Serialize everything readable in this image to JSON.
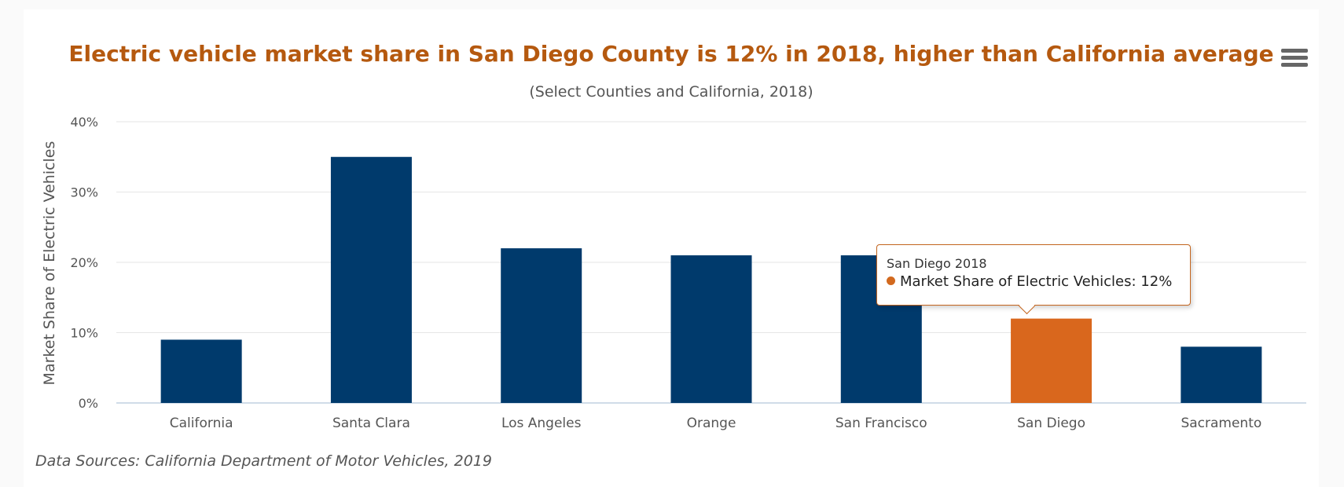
{
  "colors": {
    "bar": "#003a6c",
    "highlight": "#d9671d",
    "title": "#b5590f",
    "grid": "#e6e6e6",
    "axis_line": "#c0d0e0",
    "text": "#555555"
  },
  "menu": {
    "icon": "hamburger-menu-icon"
  },
  "chart_data": {
    "type": "bar",
    "title": "Electric vehicle market share in San Diego County is 12% in 2018, higher than California average",
    "subtitle": "(Select Counties and California, 2018)",
    "xlabel": "",
    "ylabel": "Market Share of Electric Vehicles",
    "categories": [
      "California",
      "Santa Clara",
      "Los Angeles",
      "Orange",
      "San Francisco",
      "San Diego",
      "Sacramento"
    ],
    "values": [
      9,
      35,
      22,
      21,
      21,
      12,
      8
    ],
    "highlighted_category": "San Diego",
    "ylim": [
      0,
      40
    ],
    "yticks": [
      "0%",
      "10%",
      "20%",
      "30%",
      "40%"
    ],
    "grid": true,
    "legend": "none"
  },
  "tooltip": {
    "header": "San Diego 2018",
    "series_label": "Market Share of Electric Vehicles: 12%"
  },
  "source": "Data Sources: California Department of Motor Vehicles, 2019"
}
